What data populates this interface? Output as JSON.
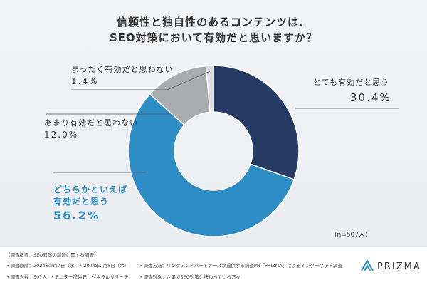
{
  "chart_data": {
    "type": "donut",
    "title": [
      "信頼性と独自性のあるコンテンツは、",
      "SEO対策において有効だと思いますか？"
    ],
    "categories": [
      "とても有効だと思う",
      "どちらかといえば\n有効だと思う",
      "あまり有効だと思わない",
      "まったく有効だと思わない"
    ],
    "values": [
      30.4,
      56.2,
      12.0,
      1.4
    ],
    "value_labels": [
      "30.4%",
      "56.2%",
      "12.0%",
      "1.4%"
    ],
    "colors": [
      "#263a63",
      "#2f8dc5",
      "#a9abad",
      "#dcdddf"
    ],
    "note": "(n=507人)"
  },
  "footer": {
    "lines": [
      "【調査概要：SEO対策の課題に関する調査】",
      "・調査期間：2024年2月7日（水）〜2024年2月8日（木）",
      "・調査方法：リンクアンドパートナーズが提供する調査PR「PRIZMA」によるインターネット調査",
      "・調査人数：507人",
      "・モニター提供元：ゼネラルリサーチ",
      "・調査対象：企業でSEO対策に携わっている方々"
    ],
    "logo": "PRIZMA"
  }
}
